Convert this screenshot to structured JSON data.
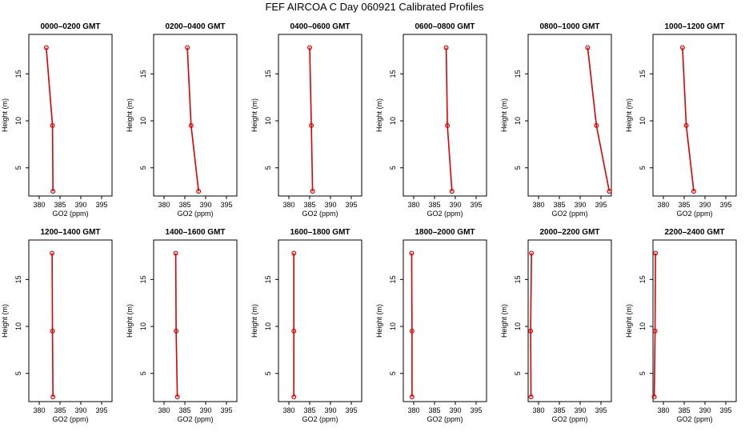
{
  "title": "FEF AIRCOA C  Day 060921  Calibrated Profiles",
  "chart_data": [
    {
      "type": "line",
      "title": "0000–0200 GMT",
      "xlabel": "GO2 (ppm)",
      "ylabel": "Height (m)",
      "xlim": [
        377.5,
        397.5
      ],
      "ylim": [
        2,
        19.2
      ],
      "xticks": [
        380,
        385,
        390,
        395
      ],
      "yticks": [
        5,
        10,
        15
      ],
      "series": [
        {
          "x": [
            381.7,
            383.2,
            383.3
          ],
          "y": [
            17.8,
            9.5,
            2.5
          ]
        }
      ]
    },
    {
      "type": "line",
      "title": "0200–0400 GMT",
      "xlabel": "GO2 (ppm)",
      "ylabel": "Height (m)",
      "xlim": [
        377.5,
        397.5
      ],
      "ylim": [
        2,
        19.2
      ],
      "xticks": [
        380,
        385,
        390,
        395
      ],
      "yticks": [
        5,
        10,
        15
      ],
      "series": [
        {
          "x": [
            385.6,
            386.5,
            388.3
          ],
          "y": [
            17.8,
            9.5,
            2.5
          ]
        }
      ]
    },
    {
      "type": "line",
      "title": "0400–0600 GMT",
      "xlabel": "GO2 (ppm)",
      "ylabel": "Height (m)",
      "xlim": [
        377.5,
        397.5
      ],
      "ylim": [
        2,
        19.2
      ],
      "xticks": [
        380,
        385,
        390,
        395
      ],
      "yticks": [
        5,
        10,
        15
      ],
      "series": [
        {
          "x": [
            385.0,
            385.4,
            385.7
          ],
          "y": [
            17.8,
            9.5,
            2.5
          ]
        }
      ]
    },
    {
      "type": "line",
      "title": "0600–0800 GMT",
      "xlabel": "GO2 (ppm)",
      "ylabel": "Height (m)",
      "xlim": [
        377.5,
        397.5
      ],
      "ylim": [
        2,
        19.2
      ],
      "xticks": [
        380,
        385,
        390,
        395
      ],
      "yticks": [
        5,
        10,
        15
      ],
      "series": [
        {
          "x": [
            387.8,
            388.1,
            389.2
          ],
          "y": [
            17.8,
            9.5,
            2.5
          ]
        }
      ]
    },
    {
      "type": "line",
      "title": "0800–1000 GMT",
      "xlabel": "GO2 (ppm)",
      "ylabel": "Height (m)",
      "xlim": [
        377.5,
        397.5
      ],
      "ylim": [
        2,
        19.2
      ],
      "xticks": [
        380,
        385,
        390,
        395
      ],
      "yticks": [
        5,
        10,
        15
      ],
      "series": [
        {
          "x": [
            391.8,
            393.9,
            397.0
          ],
          "y": [
            17.8,
            9.5,
            2.5
          ]
        }
      ]
    },
    {
      "type": "line",
      "title": "1000–1200 GMT",
      "xlabel": "GO2 (ppm)",
      "ylabel": "Height (m)",
      "xlim": [
        377.5,
        397.5
      ],
      "ylim": [
        2,
        19.2
      ],
      "xticks": [
        380,
        385,
        390,
        395
      ],
      "yticks": [
        5,
        10,
        15
      ],
      "series": [
        {
          "x": [
            384.6,
            385.5,
            387.3
          ],
          "y": [
            17.8,
            9.5,
            2.5
          ]
        }
      ]
    },
    {
      "type": "line",
      "title": "1200–1400 GMT",
      "xlabel": "GO2 (ppm)",
      "ylabel": "Height (m)",
      "xlim": [
        377.5,
        397.5
      ],
      "ylim": [
        2,
        19.2
      ],
      "xticks": [
        380,
        385,
        390,
        395
      ],
      "yticks": [
        5,
        10,
        15
      ],
      "series": [
        {
          "x": [
            383.1,
            383.2,
            383.3
          ],
          "y": [
            17.8,
            9.5,
            2.5
          ]
        }
      ]
    },
    {
      "type": "line",
      "title": "1400–1600 GMT",
      "xlabel": "GO2 (ppm)",
      "ylabel": "Height (m)",
      "xlim": [
        377.5,
        397.5
      ],
      "ylim": [
        2,
        19.2
      ],
      "xticks": [
        380,
        385,
        390,
        395
      ],
      "yticks": [
        5,
        10,
        15
      ],
      "series": [
        {
          "x": [
            382.8,
            382.9,
            383.2
          ],
          "y": [
            17.8,
            9.5,
            2.5
          ]
        }
      ]
    },
    {
      "type": "line",
      "title": "1600–1800 GMT",
      "xlabel": "GO2 (ppm)",
      "ylabel": "Height (m)",
      "xlim": [
        377.5,
        397.5
      ],
      "ylim": [
        2,
        19.2
      ],
      "xticks": [
        380,
        385,
        390,
        395
      ],
      "yticks": [
        5,
        10,
        15
      ],
      "series": [
        {
          "x": [
            381.2,
            381.2,
            381.2
          ],
          "y": [
            17.8,
            9.5,
            2.5
          ]
        }
      ]
    },
    {
      "type": "line",
      "title": "1800–2000 GMT",
      "xlabel": "GO2 (ppm)",
      "ylabel": "Height (m)",
      "xlim": [
        377.5,
        397.5
      ],
      "ylim": [
        2,
        19.2
      ],
      "xticks": [
        380,
        385,
        390,
        395
      ],
      "yticks": [
        5,
        10,
        15
      ],
      "series": [
        {
          "x": [
            379.5,
            379.6,
            379.6
          ],
          "y": [
            17.8,
            9.5,
            2.5
          ]
        }
      ]
    },
    {
      "type": "line",
      "title": "2000–2200 GMT",
      "xlabel": "GO2 (ppm)",
      "ylabel": "Height (m)",
      "xlim": [
        377.5,
        397.5
      ],
      "ylim": [
        2,
        19.2
      ],
      "xticks": [
        380,
        385,
        390,
        395
      ],
      "yticks": [
        5,
        10,
        15
      ],
      "series": [
        {
          "x": [
            378.3,
            378.1,
            378.2
          ],
          "y": [
            17.8,
            9.5,
            2.5
          ]
        }
      ]
    },
    {
      "type": "line",
      "title": "2200–2400 GMT",
      "xlabel": "GO2 (ppm)",
      "ylabel": "Height (m)",
      "xlim": [
        377.5,
        397.5
      ],
      "ylim": [
        2,
        19.2
      ],
      "xticks": [
        380,
        385,
        390,
        395
      ],
      "yticks": [
        5,
        10,
        15
      ],
      "series": [
        {
          "x": [
            378.1,
            378.0,
            377.8
          ],
          "y": [
            17.8,
            9.5,
            2.5
          ]
        }
      ]
    }
  ],
  "colors": {
    "line": "#dd0000",
    "axis": "#000000"
  }
}
